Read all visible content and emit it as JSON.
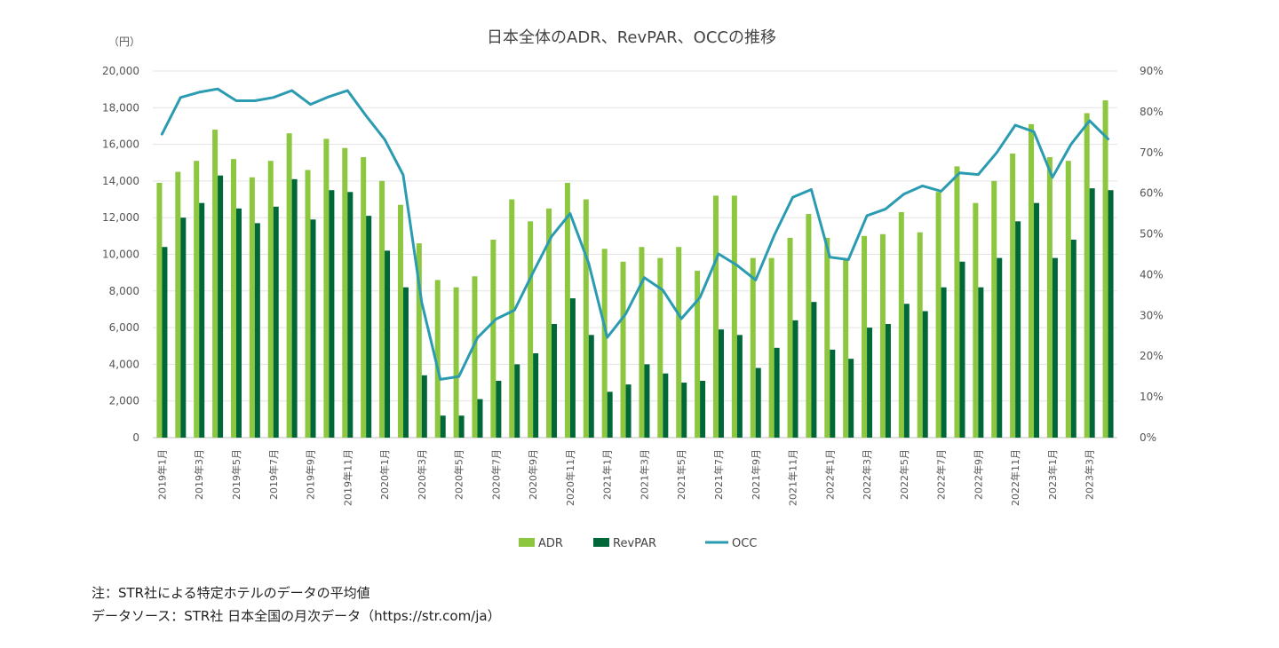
{
  "chart_data": {
    "type": "bar",
    "title": "日本全体のADR、RevPAR、OCCの推移",
    "y_unit_label": "（円）",
    "ylim": [
      0,
      20000
    ],
    "y_ticks": [
      "20,000",
      "18,000",
      "16,000",
      "14,000",
      "12,000",
      "10,000",
      "8,000",
      "6,000",
      "4,000",
      "2,000",
      "0"
    ],
    "y2lim": [
      0,
      90
    ],
    "y2_ticks": [
      "90%",
      "80%",
      "70%",
      "60%",
      "50%",
      "40%",
      "30%",
      "20%",
      "10%",
      "0%"
    ],
    "x_tick_labels": [
      "2019年1月",
      "2019年3月",
      "2019年5月",
      "2019年7月",
      "2019年9月",
      "2019年11月",
      "2020年1月",
      "2020年3月",
      "2020年5月",
      "2020年7月",
      "2020年9月",
      "2020年11月",
      "2021年1月",
      "2021年3月",
      "2021年5月",
      "2021年7月",
      "2021年9月",
      "2021年11月",
      "2022年1月",
      "2022年3月",
      "2022年5月",
      "2022年7月",
      "2022年9月",
      "2022年11月",
      "2023年1月",
      "2023年3月"
    ],
    "months": 52,
    "series": [
      {
        "name": "ADR",
        "kind": "bar",
        "axis": "left",
        "color": "#8dc63f",
        "values": [
          13900,
          14500,
          15100,
          16800,
          15200,
          14200,
          15100,
          16600,
          14600,
          16300,
          15800,
          15300,
          14000,
          12700,
          10600,
          8600,
          8200,
          8800,
          10800,
          13000,
          11800,
          12500,
          13900,
          13000,
          10300,
          9600,
          10400,
          9800,
          10400,
          9100,
          13200,
          13200,
          9800,
          9800,
          10900,
          12200,
          10900,
          9700,
          11000,
          11100,
          12300,
          11200,
          13400,
          14800,
          12800,
          14000,
          15500,
          17100,
          15300,
          15100,
          17700,
          18400
        ]
      },
      {
        "name": "RevPAR",
        "kind": "bar",
        "axis": "left",
        "color": "#006838",
        "values": [
          10400,
          12000,
          12800,
          14300,
          12500,
          11700,
          12600,
          14100,
          11900,
          13500,
          13400,
          12100,
          10200,
          8200,
          3400,
          1200,
          1200,
          2100,
          3100,
          4000,
          4600,
          6200,
          7600,
          5600,
          2500,
          2900,
          4000,
          3500,
          3000,
          3100,
          5900,
          5600,
          3800,
          4900,
          6400,
          7400,
          4800,
          4300,
          6000,
          6200,
          7300,
          6900,
          8200,
          9600,
          8200,
          9800,
          11800,
          12800,
          9800,
          10800,
          13600,
          13500
        ]
      },
      {
        "name": "OCC",
        "kind": "line",
        "axis": "right",
        "color": "#2a9bb0",
        "values": [
          74.5,
          83.5,
          84.8,
          85.6,
          82.7,
          82.7,
          83.5,
          85.2,
          81.8,
          83.7,
          85.2,
          79.0,
          73.2,
          64.5,
          33.2,
          14.3,
          15.0,
          24.5,
          29.1,
          31.3,
          40.5,
          49.4,
          55.0,
          42.8,
          24.6,
          30.4,
          39.3,
          36.2,
          29.2,
          34.4,
          45.1,
          42.3,
          38.7,
          49.6,
          59.0,
          60.9,
          44.3,
          43.7,
          54.5,
          56.1,
          59.8,
          61.8,
          60.5,
          65.0,
          64.6,
          70.0,
          76.7,
          75.1,
          63.9,
          72.0,
          77.8,
          73.3
        ]
      }
    ],
    "legend": [
      {
        "label": "ADR",
        "color": "#8dc63f",
        "kind": "bar"
      },
      {
        "label": "RevPAR",
        "color": "#006838",
        "kind": "bar"
      },
      {
        "label": "OCC",
        "color": "#2a9bb0",
        "kind": "line"
      }
    ],
    "legend_position": "bottom",
    "grid": true
  },
  "notes": {
    "note": "注：STR社による特定ホテルのデータの平均値",
    "source": "データソース：STR社 日本全国の月次データ（https://str.com/ja）"
  }
}
